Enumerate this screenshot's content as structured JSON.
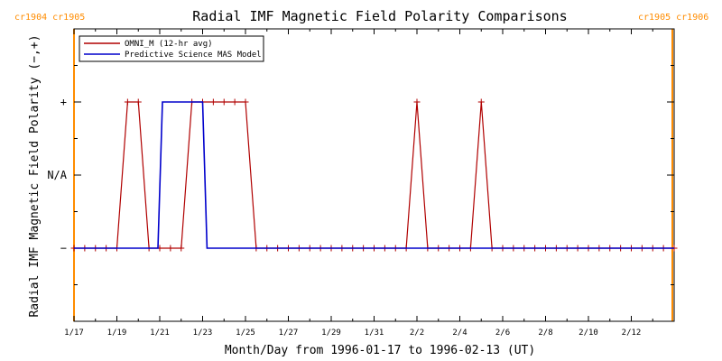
{
  "colors": {
    "omni": "#b00000",
    "mas": "#0000cc",
    "carrington": "#ff8c00",
    "axes": "#000000"
  },
  "chart_data": {
    "type": "line",
    "title": "Radial IMF Magnetic Field Polarity Comparisons",
    "xlabel": "Month/Day from 1996-01-17 to 1996-02-13 (UT)",
    "ylabel": "Radial IMF Magnetic Field Polarity (−,+)",
    "x_tick_labels": [
      "1/17",
      "1/19",
      "1/21",
      "1/23",
      "1/25",
      "1/27",
      "1/29",
      "1/31",
      "2/2",
      "2/4",
      "2/6",
      "2/8",
      "2/10",
      "2/12"
    ],
    "y_tick_labels": [
      "+",
      "N/A",
      "−"
    ],
    "y_levels": {
      "+": 1,
      "N/A": 0,
      "−": -1
    },
    "ylim": [
      -2,
      2
    ],
    "grid": false,
    "legend_position": "top-left",
    "carrington_labels": {
      "left": "cr1904 cr1905",
      "right": "cr1905 cr1906"
    },
    "series": [
      {
        "name": "OMNI_M (12-hr avg)",
        "marker": "+",
        "points": [
          [
            "1996-01-17T00:00",
            -1
          ],
          [
            "1996-01-17T12:00",
            -1
          ],
          [
            "1996-01-18T00:00",
            -1
          ],
          [
            "1996-01-18T12:00",
            -1
          ],
          [
            "1996-01-19T00:00",
            -1
          ],
          [
            "1996-01-19T12:00",
            1
          ],
          [
            "1996-01-20T00:00",
            1
          ],
          [
            "1996-01-20T12:00",
            -1
          ],
          [
            "1996-01-21T00:00",
            -1
          ],
          [
            "1996-01-21T12:00",
            -1
          ],
          [
            "1996-01-22T00:00",
            -1
          ],
          [
            "1996-01-22T12:00",
            1
          ],
          [
            "1996-01-23T00:00",
            1
          ],
          [
            "1996-01-23T12:00",
            1
          ],
          [
            "1996-01-24T00:00",
            1
          ],
          [
            "1996-01-24T12:00",
            1
          ],
          [
            "1996-01-25T00:00",
            1
          ],
          [
            "1996-01-25T12:00",
            -1
          ],
          [
            "1996-01-26T00:00",
            -1
          ],
          [
            "1996-01-26T12:00",
            -1
          ],
          [
            "1996-01-27T00:00",
            -1
          ],
          [
            "1996-01-27T12:00",
            -1
          ],
          [
            "1996-01-28T00:00",
            -1
          ],
          [
            "1996-01-28T12:00",
            -1
          ],
          [
            "1996-01-29T00:00",
            -1
          ],
          [
            "1996-01-29T12:00",
            -1
          ],
          [
            "1996-01-30T00:00",
            -1
          ],
          [
            "1996-01-30T12:00",
            -1
          ],
          [
            "1996-01-31T00:00",
            -1
          ],
          [
            "1996-01-31T12:00",
            -1
          ],
          [
            "1996-02-01T00:00",
            -1
          ],
          [
            "1996-02-01T12:00",
            -1
          ],
          [
            "1996-02-02T00:00",
            1
          ],
          [
            "1996-02-02T12:00",
            -1
          ],
          [
            "1996-02-03T00:00",
            -1
          ],
          [
            "1996-02-03T12:00",
            -1
          ],
          [
            "1996-02-04T00:00",
            -1
          ],
          [
            "1996-02-04T12:00",
            -1
          ],
          [
            "1996-02-05T00:00",
            1
          ],
          [
            "1996-02-05T12:00",
            -1
          ],
          [
            "1996-02-06T00:00",
            -1
          ],
          [
            "1996-02-06T12:00",
            -1
          ],
          [
            "1996-02-07T00:00",
            -1
          ],
          [
            "1996-02-07T12:00",
            -1
          ],
          [
            "1996-02-08T00:00",
            -1
          ],
          [
            "1996-02-08T12:00",
            -1
          ],
          [
            "1996-02-09T00:00",
            -1
          ],
          [
            "1996-02-09T12:00",
            -1
          ],
          [
            "1996-02-10T00:00",
            -1
          ],
          [
            "1996-02-10T12:00",
            -1
          ],
          [
            "1996-02-11T00:00",
            -1
          ],
          [
            "1996-02-11T12:00",
            -1
          ],
          [
            "1996-02-12T00:00",
            -1
          ],
          [
            "1996-02-12T12:00",
            -1
          ],
          [
            "1996-02-13T00:00",
            -1
          ],
          [
            "1996-02-13T12:00",
            -1
          ],
          [
            "1996-02-14T00:00",
            -1
          ]
        ]
      },
      {
        "name": "Predictive Science MAS Model",
        "marker": "none",
        "points": [
          [
            "1996-01-17T00:00",
            -1
          ],
          [
            "1996-01-20T22:00",
            -1
          ],
          [
            "1996-01-21T03:00",
            1
          ],
          [
            "1996-01-23T00:00",
            1
          ],
          [
            "1996-01-23T05:00",
            -1
          ],
          [
            "1996-02-14T00:00",
            -1
          ]
        ]
      }
    ]
  }
}
